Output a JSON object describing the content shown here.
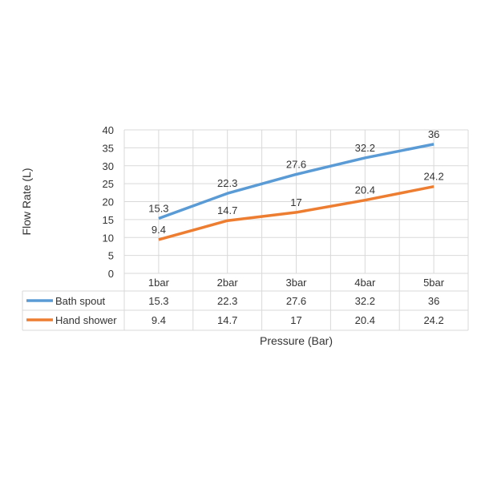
{
  "chart_data": {
    "type": "line",
    "title": "",
    "xlabel": "Pressure (Bar)",
    "ylabel": "Flow Rate (L)",
    "categories": [
      "1bar",
      "2bar",
      "3bar",
      "4bar",
      "5bar"
    ],
    "ylim": [
      0,
      40
    ],
    "yticks": [
      0,
      5,
      10,
      15,
      20,
      25,
      30,
      35,
      40
    ],
    "grid": true,
    "legend": "data-table",
    "series": [
      {
        "name": "Bath spout",
        "color": "#5b9bd5",
        "values": [
          15.3,
          22.3,
          27.6,
          32.2,
          36
        ]
      },
      {
        "name": "Hand shower",
        "color": "#ed7d31",
        "values": [
          9.4,
          14.7,
          17,
          20.4,
          24.2
        ]
      }
    ]
  }
}
